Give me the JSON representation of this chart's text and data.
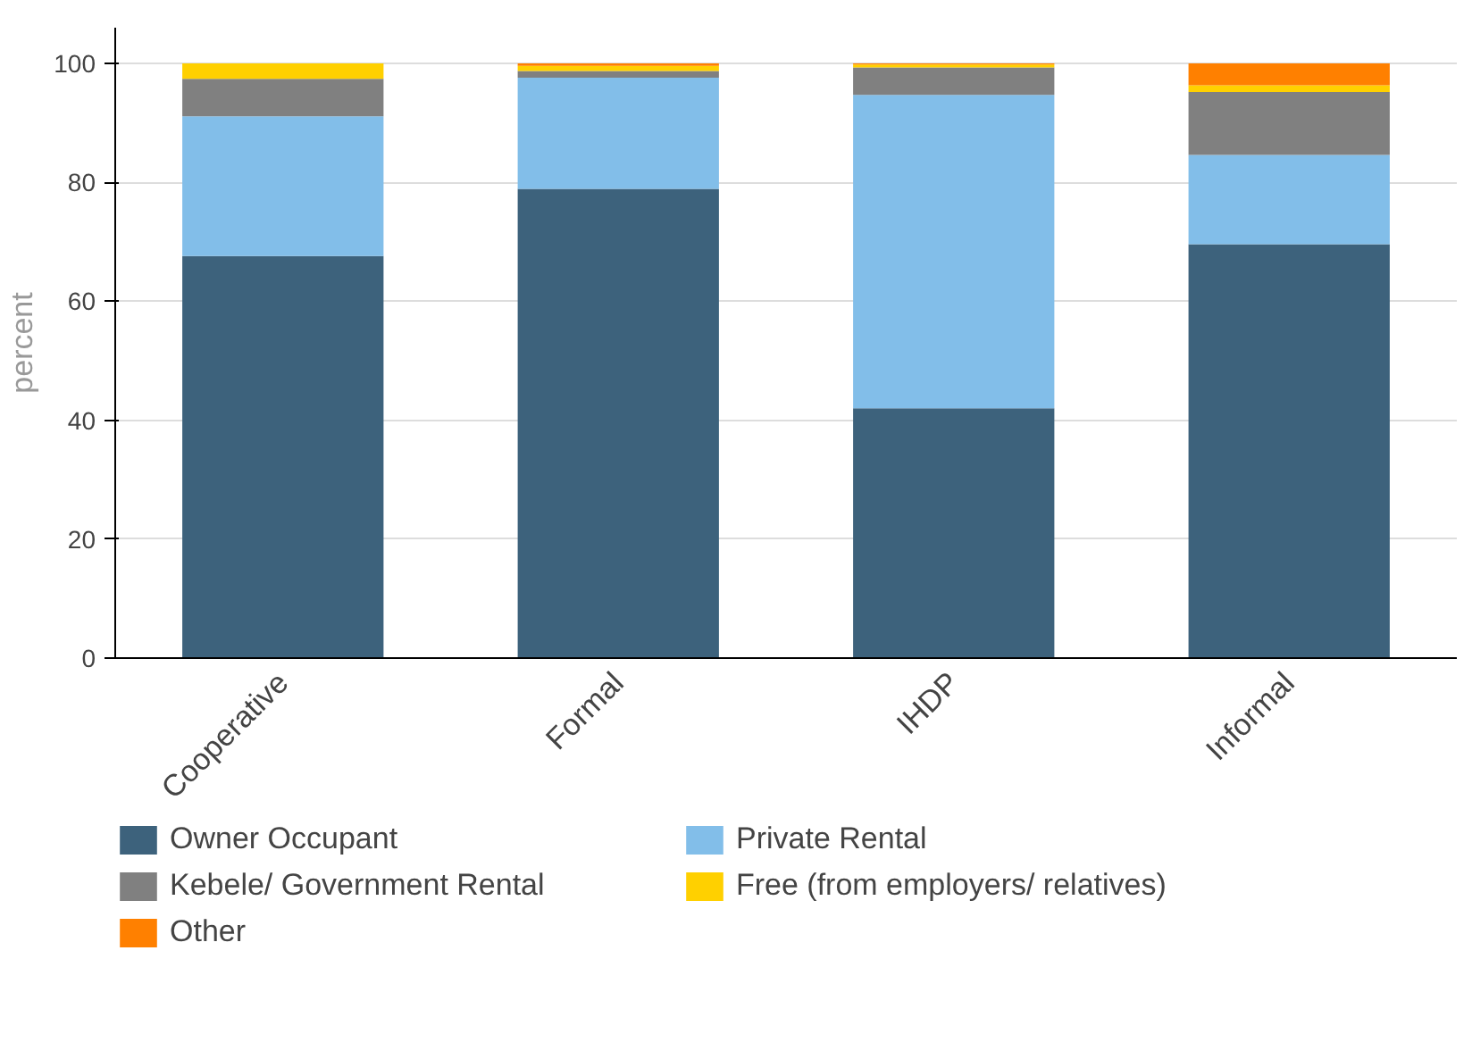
{
  "chart_data": {
    "type": "bar",
    "stacked": true,
    "ylabel": "percent",
    "categories": [
      "Cooperative",
      "Formal",
      "IHDP",
      "Informal"
    ],
    "series": [
      {
        "name": "Owner Occupant",
        "color": "#3d627c",
        "values": [
          67.6,
          78.9,
          42.0,
          69.6
        ]
      },
      {
        "name": "Private Rental",
        "color": "#82bee9",
        "values": [
          23.5,
          18.7,
          52.7,
          15.0
        ]
      },
      {
        "name": "Kebele/ Government Rental",
        "color": "#808080",
        "values": [
          6.3,
          1.1,
          4.6,
          10.6
        ]
      },
      {
        "name": "Free (from employers/ relatives)",
        "color": "#ffd000",
        "values": [
          2.6,
          0.9,
          0.5,
          1.1
        ]
      },
      {
        "name": "Other",
        "color": "#ff8000",
        "values": [
          0,
          0.4,
          0.2,
          3.7
        ]
      }
    ],
    "ylim": [
      0,
      106
    ],
    "yticks": [
      0,
      20,
      40,
      60,
      80,
      100
    ],
    "grid": "y",
    "legend": "bottom"
  }
}
